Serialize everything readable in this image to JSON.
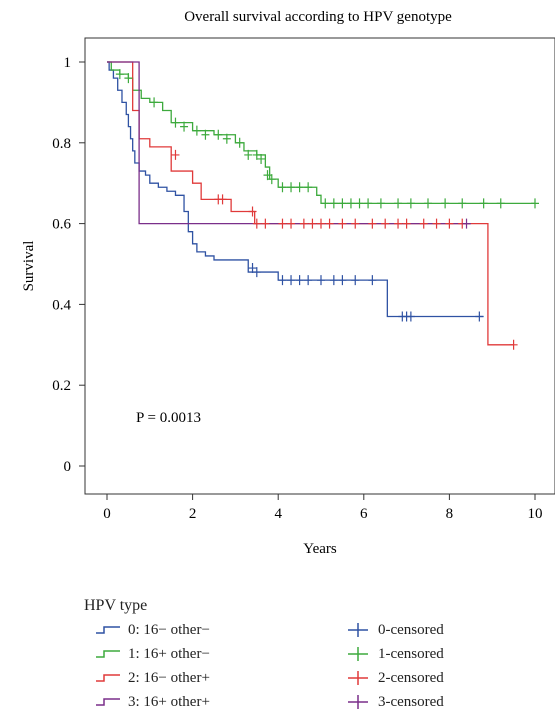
{
  "chart_data": {
    "type": "line",
    "title": "Overall survival according to HPV genotype",
    "xlabel": "Years",
    "ylabel": "Survival",
    "xlim": [
      0,
      10
    ],
    "ylim": [
      0,
      1
    ],
    "xticks": [
      "0",
      "2",
      "4",
      "6",
      "8",
      "10"
    ],
    "yticks": [
      "0",
      "0.2",
      "0.4",
      "0.6",
      "0.8",
      "1"
    ],
    "annotation": "P = 0.0013",
    "legend_title": "HPV type",
    "series": [
      {
        "name": "0: 16− other−",
        "color": "#2f52a3",
        "censor_name": "0-censored",
        "points": [
          [
            0,
            1
          ],
          [
            0.05,
            0.98
          ],
          [
            0.15,
            0.96
          ],
          [
            0.25,
            0.93
          ],
          [
            0.35,
            0.9
          ],
          [
            0.45,
            0.87
          ],
          [
            0.5,
            0.84
          ],
          [
            0.55,
            0.81
          ],
          [
            0.6,
            0.78
          ],
          [
            0.65,
            0.75
          ],
          [
            0.75,
            0.73
          ],
          [
            0.9,
            0.72
          ],
          [
            1.0,
            0.7
          ],
          [
            1.2,
            0.69
          ],
          [
            1.4,
            0.68
          ],
          [
            1.6,
            0.67
          ],
          [
            1.8,
            0.63
          ],
          [
            1.9,
            0.58
          ],
          [
            2.0,
            0.55
          ],
          [
            2.1,
            0.53
          ],
          [
            2.3,
            0.52
          ],
          [
            2.5,
            0.51
          ],
          [
            3.0,
            0.51
          ],
          [
            3.3,
            0.48
          ],
          [
            3.5,
            0.48
          ],
          [
            4.0,
            0.46
          ],
          [
            6.5,
            0.46
          ],
          [
            6.55,
            0.37
          ],
          [
            8.8,
            0.37
          ]
        ],
        "censored": [
          [
            3.4,
            0.49
          ],
          [
            3.5,
            0.48
          ],
          [
            4.1,
            0.46
          ],
          [
            4.3,
            0.46
          ],
          [
            4.5,
            0.46
          ],
          [
            4.7,
            0.46
          ],
          [
            5.0,
            0.46
          ],
          [
            5.3,
            0.46
          ],
          [
            5.5,
            0.46
          ],
          [
            5.8,
            0.46
          ],
          [
            6.2,
            0.46
          ],
          [
            6.9,
            0.37
          ],
          [
            7.0,
            0.37
          ],
          [
            7.1,
            0.37
          ],
          [
            8.7,
            0.37
          ]
        ]
      },
      {
        "name": "1: 16+ other−",
        "color": "#3daa3d",
        "censor_name": "1-censored",
        "points": [
          [
            0,
            1
          ],
          [
            0.1,
            0.98
          ],
          [
            0.3,
            0.97
          ],
          [
            0.5,
            0.96
          ],
          [
            0.6,
            0.93
          ],
          [
            0.8,
            0.91
          ],
          [
            1.0,
            0.9
          ],
          [
            1.3,
            0.88
          ],
          [
            1.5,
            0.85
          ],
          [
            2.0,
            0.83
          ],
          [
            2.5,
            0.82
          ],
          [
            3.0,
            0.8
          ],
          [
            3.2,
            0.78
          ],
          [
            3.5,
            0.77
          ],
          [
            3.7,
            0.74
          ],
          [
            3.8,
            0.71
          ],
          [
            4.0,
            0.69
          ],
          [
            4.8,
            0.69
          ],
          [
            4.9,
            0.67
          ],
          [
            5.0,
            0.65
          ],
          [
            10,
            0.65
          ]
        ],
        "censored": [
          [
            0.3,
            0.97
          ],
          [
            0.5,
            0.96
          ],
          [
            1.1,
            0.9
          ],
          [
            1.6,
            0.85
          ],
          [
            1.8,
            0.84
          ],
          [
            2.1,
            0.83
          ],
          [
            2.3,
            0.82
          ],
          [
            2.6,
            0.82
          ],
          [
            2.8,
            0.81
          ],
          [
            3.1,
            0.8
          ],
          [
            3.3,
            0.77
          ],
          [
            3.5,
            0.77
          ],
          [
            3.6,
            0.76
          ],
          [
            3.75,
            0.72
          ],
          [
            3.85,
            0.71
          ],
          [
            4.1,
            0.69
          ],
          [
            4.3,
            0.69
          ],
          [
            4.5,
            0.69
          ],
          [
            4.7,
            0.69
          ],
          [
            5.1,
            0.65
          ],
          [
            5.3,
            0.65
          ],
          [
            5.5,
            0.65
          ],
          [
            5.7,
            0.65
          ],
          [
            5.9,
            0.65
          ],
          [
            6.1,
            0.65
          ],
          [
            6.4,
            0.65
          ],
          [
            6.8,
            0.65
          ],
          [
            7.1,
            0.65
          ],
          [
            7.5,
            0.65
          ],
          [
            7.9,
            0.65
          ],
          [
            8.3,
            0.65
          ],
          [
            8.8,
            0.65
          ],
          [
            9.2,
            0.65
          ],
          [
            10.0,
            0.65
          ]
        ]
      },
      {
        "name": "2: 16− other+",
        "color": "#e03a3a",
        "censor_name": "2-censored",
        "points": [
          [
            0,
            1
          ],
          [
            0.55,
            1
          ],
          [
            0.6,
            0.88
          ],
          [
            0.75,
            0.81
          ],
          [
            1.0,
            0.79
          ],
          [
            1.5,
            0.73
          ],
          [
            2.0,
            0.7
          ],
          [
            2.2,
            0.66
          ],
          [
            2.8,
            0.66
          ],
          [
            2.9,
            0.63
          ],
          [
            3.4,
            0.63
          ],
          [
            3.45,
            0.6
          ],
          [
            8.9,
            0.6
          ],
          [
            8.9,
            0.3
          ],
          [
            9.5,
            0.3
          ]
        ],
        "censored": [
          [
            1.6,
            0.77
          ],
          [
            2.6,
            0.66
          ],
          [
            2.7,
            0.66
          ],
          [
            3.4,
            0.63
          ],
          [
            3.5,
            0.6
          ],
          [
            3.7,
            0.6
          ],
          [
            4.1,
            0.6
          ],
          [
            4.3,
            0.6
          ],
          [
            4.6,
            0.6
          ],
          [
            4.8,
            0.6
          ],
          [
            5.0,
            0.6
          ],
          [
            5.2,
            0.6
          ],
          [
            5.5,
            0.6
          ],
          [
            5.8,
            0.6
          ],
          [
            6.2,
            0.6
          ],
          [
            6.5,
            0.6
          ],
          [
            6.8,
            0.6
          ],
          [
            7.0,
            0.6
          ],
          [
            7.4,
            0.6
          ],
          [
            7.7,
            0.6
          ],
          [
            8.0,
            0.6
          ],
          [
            8.3,
            0.6
          ],
          [
            9.5,
            0.3
          ]
        ]
      },
      {
        "name": "3: 16+ other+",
        "color": "#7a2f8a",
        "censor_name": "3-censored",
        "points": [
          [
            0,
            1
          ],
          [
            0.75,
            1
          ],
          [
            0.75,
            0.6
          ],
          [
            8.5,
            0.6
          ]
        ],
        "censored": [
          [
            8.4,
            0.6
          ]
        ]
      }
    ]
  }
}
